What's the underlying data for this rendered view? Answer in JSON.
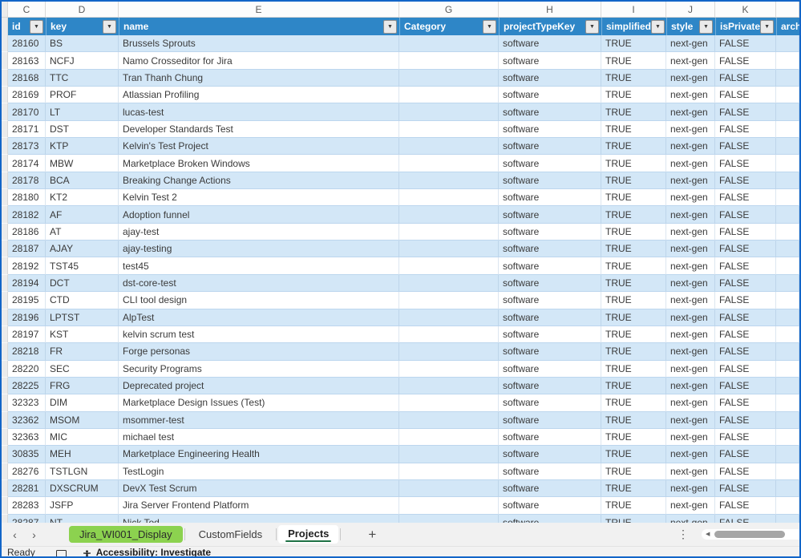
{
  "sheet": {
    "column_letters": [
      "C",
      "D",
      "E",
      "G",
      "H",
      "I",
      "J",
      "K",
      ""
    ],
    "table": {
      "columns": [
        {
          "label": "id",
          "filter": true
        },
        {
          "label": "key",
          "filter": true
        },
        {
          "label": "name",
          "filter": true
        },
        {
          "label": "Category",
          "filter": true
        },
        {
          "label": "projectTypeKey",
          "filter": true
        },
        {
          "label": "simplified",
          "filter": true
        },
        {
          "label": "style",
          "filter": true
        },
        {
          "label": "isPrivate",
          "filter": true
        },
        {
          "label": "arch",
          "filter": false
        }
      ],
      "rows": [
        {
          "id": "28160",
          "key": "BS",
          "name": "Brussels Sprouts",
          "category": "",
          "projectTypeKey": "software",
          "simplified": "TRUE",
          "style": "next-gen",
          "isPrivate": "FALSE",
          "archived": ""
        },
        {
          "id": "28163",
          "key": "NCFJ",
          "name": "Namo Crosseditor for Jira",
          "category": "",
          "projectTypeKey": "software",
          "simplified": "TRUE",
          "style": "next-gen",
          "isPrivate": "FALSE",
          "archived": ""
        },
        {
          "id": "28168",
          "key": "TTC",
          "name": "Tran Thanh Chung",
          "category": "",
          "projectTypeKey": "software",
          "simplified": "TRUE",
          "style": "next-gen",
          "isPrivate": "FALSE",
          "archived": ""
        },
        {
          "id": "28169",
          "key": "PROF",
          "name": "Atlassian Profiling",
          "category": "",
          "projectTypeKey": "software",
          "simplified": "TRUE",
          "style": "next-gen",
          "isPrivate": "FALSE",
          "archived": ""
        },
        {
          "id": "28170",
          "key": "LT",
          "name": "lucas-test",
          "category": "",
          "projectTypeKey": "software",
          "simplified": "TRUE",
          "style": "next-gen",
          "isPrivate": "FALSE",
          "archived": ""
        },
        {
          "id": "28171",
          "key": "DST",
          "name": "Developer Standards Test",
          "category": "",
          "projectTypeKey": "software",
          "simplified": "TRUE",
          "style": "next-gen",
          "isPrivate": "FALSE",
          "archived": ""
        },
        {
          "id": "28173",
          "key": "KTP",
          "name": "Kelvin's Test Project",
          "category": "",
          "projectTypeKey": "software",
          "simplified": "TRUE",
          "style": "next-gen",
          "isPrivate": "FALSE",
          "archived": ""
        },
        {
          "id": "28174",
          "key": "MBW",
          "name": "Marketplace Broken Windows",
          "category": "",
          "projectTypeKey": "software",
          "simplified": "TRUE",
          "style": "next-gen",
          "isPrivate": "FALSE",
          "archived": ""
        },
        {
          "id": "28178",
          "key": "BCA",
          "name": "Breaking Change Actions",
          "category": "",
          "projectTypeKey": "software",
          "simplified": "TRUE",
          "style": "next-gen",
          "isPrivate": "FALSE",
          "archived": ""
        },
        {
          "id": "28180",
          "key": "KT2",
          "name": "Kelvin Test 2",
          "category": "",
          "projectTypeKey": "software",
          "simplified": "TRUE",
          "style": "next-gen",
          "isPrivate": "FALSE",
          "archived": ""
        },
        {
          "id": "28182",
          "key": "AF",
          "name": "Adoption funnel",
          "category": "",
          "projectTypeKey": "software",
          "simplified": "TRUE",
          "style": "next-gen",
          "isPrivate": "FALSE",
          "archived": ""
        },
        {
          "id": "28186",
          "key": "AT",
          "name": "ajay-test",
          "category": "",
          "projectTypeKey": "software",
          "simplified": "TRUE",
          "style": "next-gen",
          "isPrivate": "FALSE",
          "archived": ""
        },
        {
          "id": "28187",
          "key": "AJAY",
          "name": "ajay-testing",
          "category": "",
          "projectTypeKey": "software",
          "simplified": "TRUE",
          "style": "next-gen",
          "isPrivate": "FALSE",
          "archived": ""
        },
        {
          "id": "28192",
          "key": "TST45",
          "name": "test45",
          "category": "",
          "projectTypeKey": "software",
          "simplified": "TRUE",
          "style": "next-gen",
          "isPrivate": "FALSE",
          "archived": ""
        },
        {
          "id": "28194",
          "key": "DCT",
          "name": "dst-core-test",
          "category": "",
          "projectTypeKey": "software",
          "simplified": "TRUE",
          "style": "next-gen",
          "isPrivate": "FALSE",
          "archived": ""
        },
        {
          "id": "28195",
          "key": "CTD",
          "name": "CLI tool design",
          "category": "",
          "projectTypeKey": "software",
          "simplified": "TRUE",
          "style": "next-gen",
          "isPrivate": "FALSE",
          "archived": ""
        },
        {
          "id": "28196",
          "key": "LPTST",
          "name": "AlpTest",
          "category": "",
          "projectTypeKey": "software",
          "simplified": "TRUE",
          "style": "next-gen",
          "isPrivate": "FALSE",
          "archived": ""
        },
        {
          "id": "28197",
          "key": "KST",
          "name": "kelvin scrum test",
          "category": "",
          "projectTypeKey": "software",
          "simplified": "TRUE",
          "style": "next-gen",
          "isPrivate": "FALSE",
          "archived": ""
        },
        {
          "id": "28218",
          "key": "FR",
          "name": "Forge personas",
          "category": "",
          "projectTypeKey": "software",
          "simplified": "TRUE",
          "style": "next-gen",
          "isPrivate": "FALSE",
          "archived": ""
        },
        {
          "id": "28220",
          "key": "SEC",
          "name": "Security Programs",
          "category": "",
          "projectTypeKey": "software",
          "simplified": "TRUE",
          "style": "next-gen",
          "isPrivate": "FALSE",
          "archived": ""
        },
        {
          "id": "28225",
          "key": "FRG",
          "name": "Deprecated project",
          "category": "",
          "projectTypeKey": "software",
          "simplified": "TRUE",
          "style": "next-gen",
          "isPrivate": "FALSE",
          "archived": ""
        },
        {
          "id": "32323",
          "key": "DIM",
          "name": "Marketplace Design Issues (Test)",
          "category": "",
          "projectTypeKey": "software",
          "simplified": "TRUE",
          "style": "next-gen",
          "isPrivate": "FALSE",
          "archived": ""
        },
        {
          "id": "32362",
          "key": "MSOM",
          "name": "msommer-test",
          "category": "",
          "projectTypeKey": "software",
          "simplified": "TRUE",
          "style": "next-gen",
          "isPrivate": "FALSE",
          "archived": ""
        },
        {
          "id": "32363",
          "key": "MIC",
          "name": "michael test",
          "category": "",
          "projectTypeKey": "software",
          "simplified": "TRUE",
          "style": "next-gen",
          "isPrivate": "FALSE",
          "archived": ""
        },
        {
          "id": "30835",
          "key": "MEH",
          "name": "Marketplace Engineering Health",
          "category": "",
          "projectTypeKey": "software",
          "simplified": "TRUE",
          "style": "next-gen",
          "isPrivate": "FALSE",
          "archived": ""
        },
        {
          "id": "28276",
          "key": "TSTLGN",
          "name": "TestLogin",
          "category": "",
          "projectTypeKey": "software",
          "simplified": "TRUE",
          "style": "next-gen",
          "isPrivate": "FALSE",
          "archived": ""
        },
        {
          "id": "28281",
          "key": "DXSCRUM",
          "name": "DevX Test Scrum",
          "category": "",
          "projectTypeKey": "software",
          "simplified": "TRUE",
          "style": "next-gen",
          "isPrivate": "FALSE",
          "archived": ""
        },
        {
          "id": "28283",
          "key": "JSFP",
          "name": "Jira Server Frontend Platform",
          "category": "",
          "projectTypeKey": "software",
          "simplified": "TRUE",
          "style": "next-gen",
          "isPrivate": "FALSE",
          "archived": ""
        },
        {
          "id": "28287",
          "key": "NT",
          "name": "Nick Tod",
          "category": "",
          "projectTypeKey": "software",
          "simplified": "TRUE",
          "style": "next-gen",
          "isPrivate": "FALSE",
          "archived": ""
        }
      ]
    }
  },
  "tabbar": {
    "prev": "‹",
    "next": "›",
    "tabs": [
      {
        "label": "Jira_WI001_Display"
      },
      {
        "label": "CustomFields"
      },
      {
        "label": "Projects"
      }
    ],
    "add": "+",
    "more": "⋮",
    "scroll_left": "◀"
  },
  "statusbar": {
    "ready": "Ready",
    "accessibility": "Accessibility: Investigate"
  },
  "colors": {
    "header_bg": "#2E86C7",
    "band": "#D3E7F7",
    "tab_green": "#8CD24F",
    "active_tab_underline": "#1E7145",
    "window_border": "#1265C8"
  }
}
